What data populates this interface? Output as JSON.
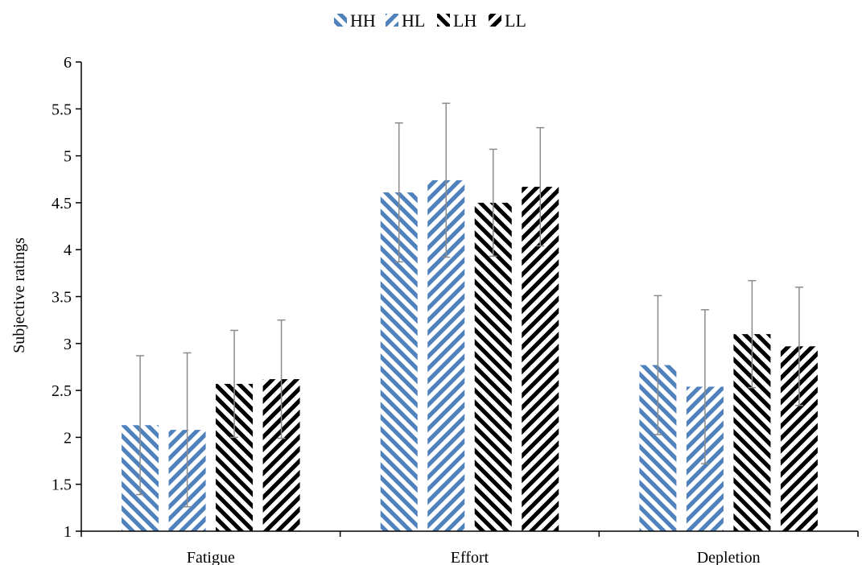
{
  "chart_data": {
    "type": "bar",
    "categories": [
      "Fatigue",
      "Effort",
      "Depletion"
    ],
    "series": [
      {
        "name": "HH",
        "values": [
          2.13,
          4.61,
          2.77
        ],
        "err": [
          0.74,
          0.74,
          0.74
        ],
        "color": "#4f81bd",
        "hatch": "back"
      },
      {
        "name": "HL",
        "values": [
          2.08,
          4.74,
          2.54
        ],
        "err": [
          0.82,
          0.82,
          0.82
        ],
        "color": "#4f81bd",
        "hatch": "forward"
      },
      {
        "name": "LH",
        "values": [
          2.57,
          4.5,
          3.1
        ],
        "err": [
          0.57,
          0.57,
          0.57
        ],
        "color": "#000000",
        "hatch": "back"
      },
      {
        "name": "LL",
        "values": [
          2.62,
          4.67,
          2.97
        ],
        "err": [
          0.63,
          0.63,
          0.63
        ],
        "color": "#000000",
        "hatch": "forward"
      }
    ],
    "title": "",
    "xlabel": "",
    "ylabel": "Subjective ratings",
    "ylim": [
      1,
      6
    ],
    "yticks": [
      "1",
      "1.5",
      "2",
      "2.5",
      "3",
      "3.5",
      "4",
      "4.5",
      "5",
      "5.5",
      "6"
    ],
    "grid": false,
    "legend_position": "top-center",
    "error_bar_color": "#8c8c8c"
  }
}
